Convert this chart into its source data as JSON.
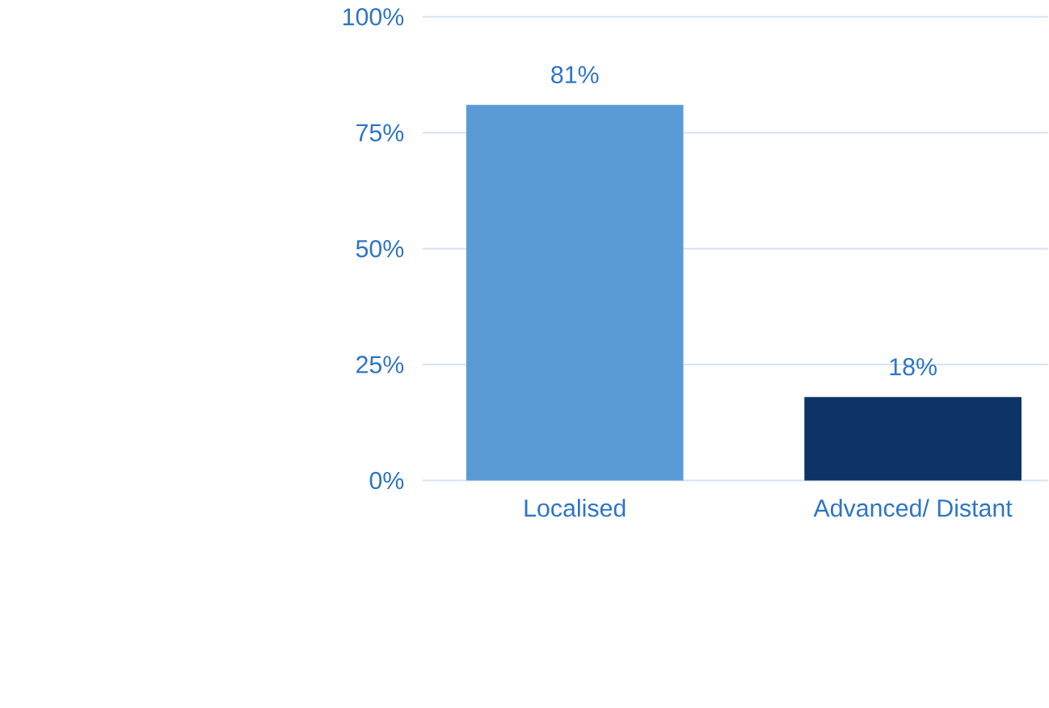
{
  "chart_data": {
    "type": "bar",
    "categories": [
      "Localised",
      "Advanced/ Distant"
    ],
    "values": [
      81,
      18
    ],
    "colors": [
      "#5b9bd5",
      "#0b3366"
    ],
    "value_labels": [
      "81%",
      "18%"
    ],
    "ylim": [
      0,
      100
    ],
    "yticks": [
      {
        "value": 0,
        "label": "0%"
      },
      {
        "value": 25,
        "label": "25%"
      },
      {
        "value": 50,
        "label": "50%"
      },
      {
        "value": 75,
        "label": "75%"
      },
      {
        "value": 100,
        "label": "100%"
      }
    ],
    "grid": "y"
  }
}
